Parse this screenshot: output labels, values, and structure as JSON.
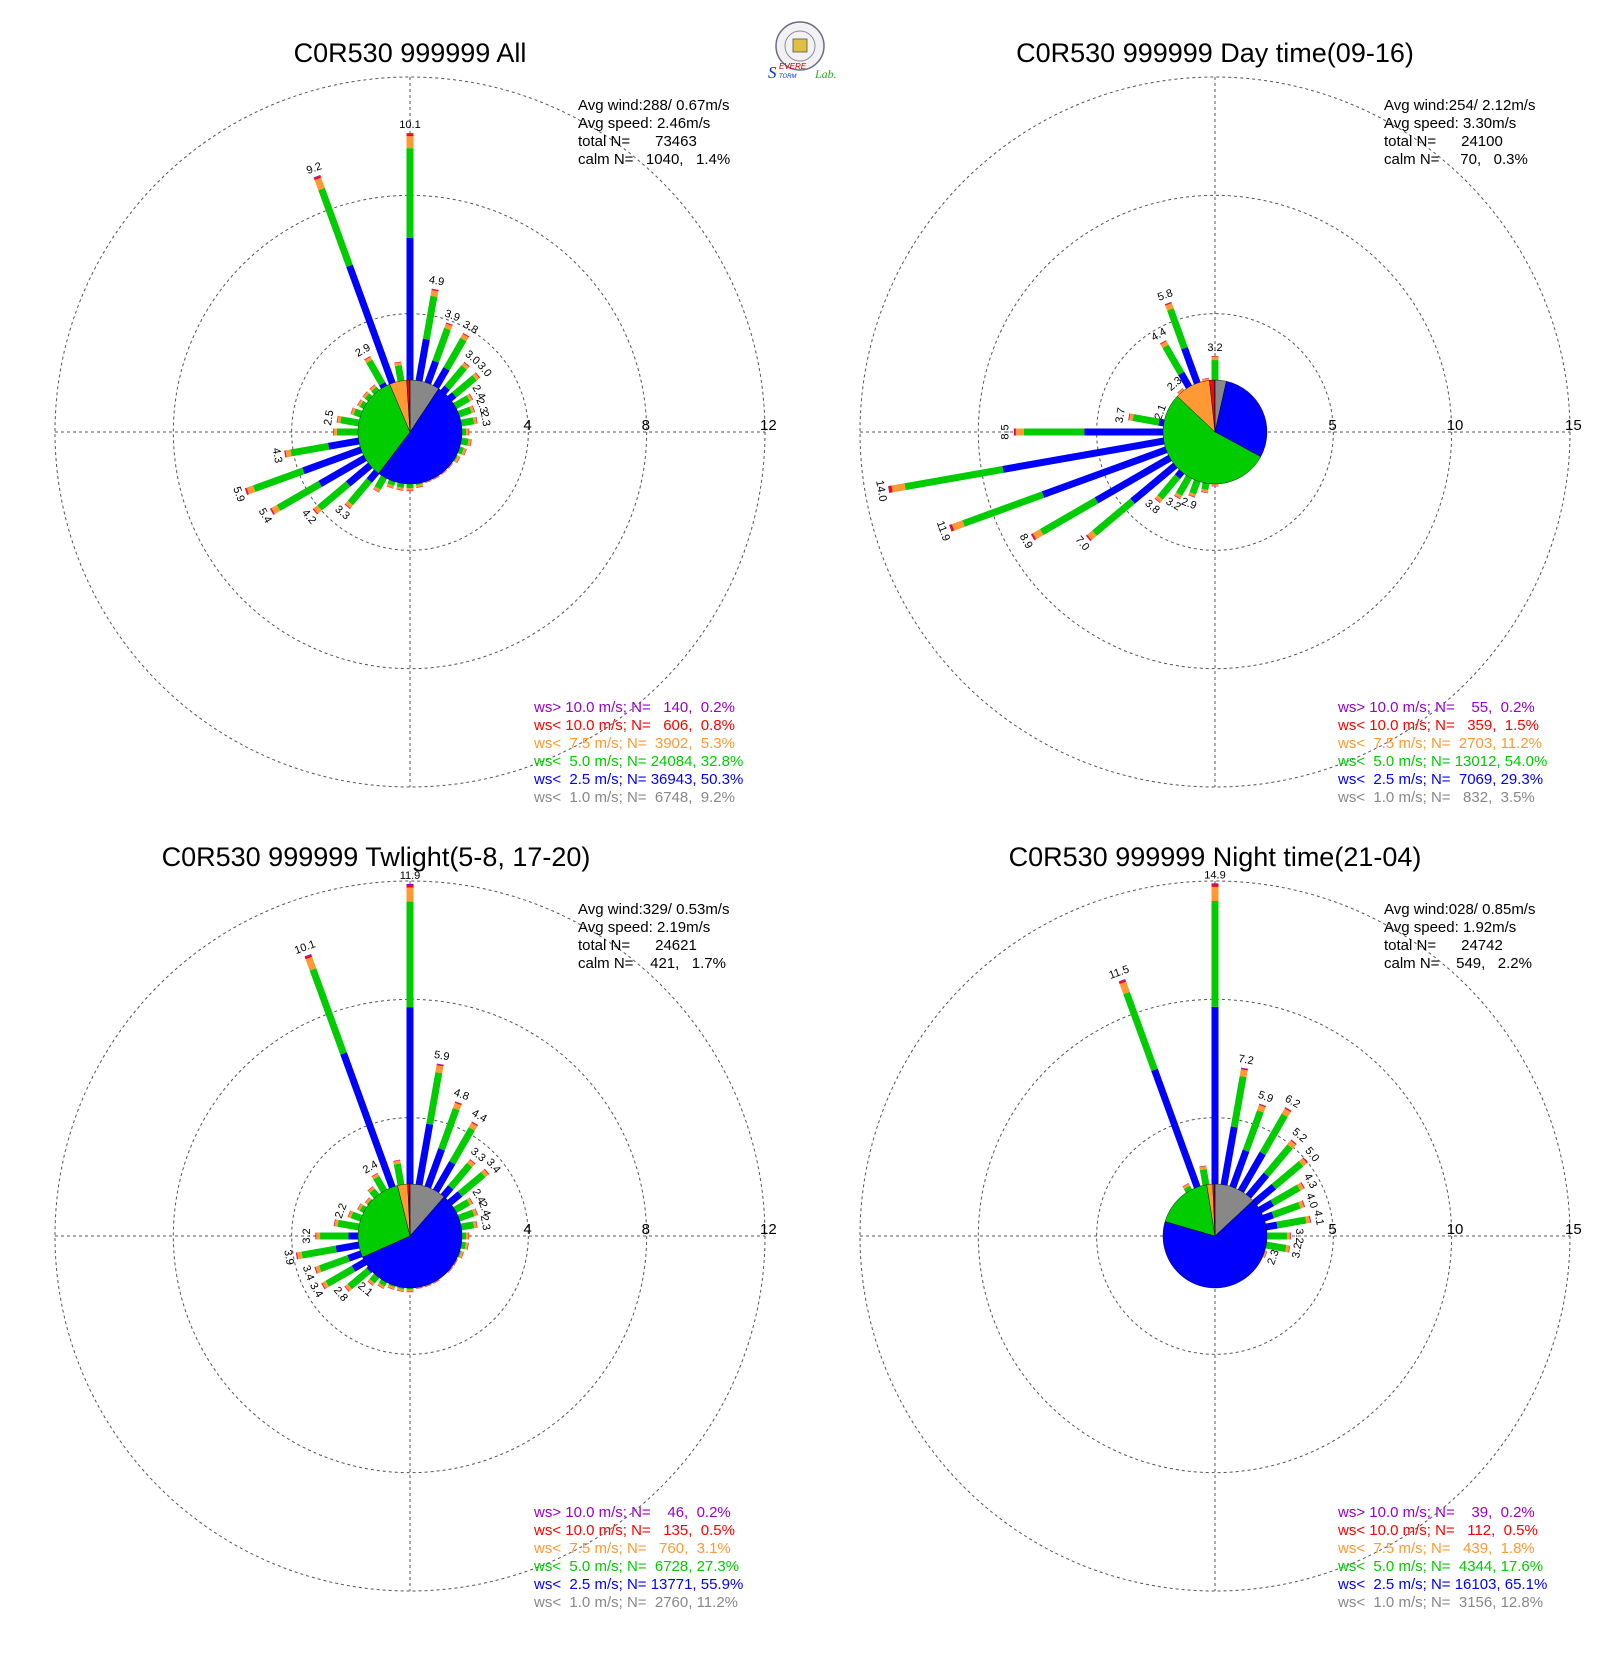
{
  "logo": {
    "text_s": "S",
    "text_evere": "EVERE",
    "text_torm": "TORM",
    "text_lab": "Lab."
  },
  "colors": {
    "gt10": "#9900cc",
    "lt10": "#ff0000",
    "lt75": "#ff9933",
    "lt5": "#00cc00",
    "lt25": "#0000ff",
    "lt1": "#888888"
  },
  "chart_data": [
    {
      "type": "windrose",
      "title": "C0R530 999999 All",
      "info": [
        "Avg wind:288/ 0.67m/s",
        "Avg speed: 2.46m/s",
        "total N=      73463",
        "calm N=   1040,   1.4%"
      ],
      "ring_labels": [
        "4",
        "8",
        "12"
      ],
      "max_ring": 12,
      "calm_pie": [
        9.2,
        50.3,
        32.8,
        5.3,
        0.8,
        0.2
      ],
      "bars": [
        {
          "dir": 0,
          "value": 10.1,
          "label": "10.1"
        },
        {
          "dir": 10,
          "value": 4.9,
          "label": "4.9"
        },
        {
          "dir": 20,
          "value": 3.9,
          "label": "3.9"
        },
        {
          "dir": 30,
          "value": 3.8,
          "label": "3.8"
        },
        {
          "dir": 40,
          "value": 3.0,
          "label": "3.0"
        },
        {
          "dir": 50,
          "value": 3.0,
          "label": "3.0"
        },
        {
          "dir": 60,
          "value": 2.4,
          "label": "2.4"
        },
        {
          "dir": 70,
          "value": 2.3,
          "label": "2.3"
        },
        {
          "dir": 80,
          "value": 2.3,
          "label": "2.3"
        },
        {
          "dir": 90,
          "value": 2.0
        },
        {
          "dir": 100,
          "value": 2.1
        },
        {
          "dir": 110,
          "value": 2.0
        },
        {
          "dir": 120,
          "value": 1.9
        },
        {
          "dir": 130,
          "value": 1.8
        },
        {
          "dir": 140,
          "value": 1.8
        },
        {
          "dir": 150,
          "value": 1.8
        },
        {
          "dir": 160,
          "value": 1.8
        },
        {
          "dir": 170,
          "value": 1.9
        },
        {
          "dir": 180,
          "value": 2.0
        },
        {
          "dir": 190,
          "value": 2.0
        },
        {
          "dir": 200,
          "value": 2.0
        },
        {
          "dir": 210,
          "value": 2.3
        },
        {
          "dir": 220,
          "value": 3.3,
          "label": "3.3"
        },
        {
          "dir": 230,
          "value": 4.2,
          "label": "4.2"
        },
        {
          "dir": 240,
          "value": 5.4,
          "label": "5.4"
        },
        {
          "dir": 250,
          "value": 5.9,
          "label": "5.9"
        },
        {
          "dir": 260,
          "value": 4.3,
          "label": "4.3"
        },
        {
          "dir": 270,
          "value": 2.6
        },
        {
          "dir": 280,
          "value": 2.5,
          "label": "2.5"
        },
        {
          "dir": 290,
          "value": 2.1
        },
        {
          "dir": 300,
          "value": 2.0
        },
        {
          "dir": 310,
          "value": 2.0
        },
        {
          "dir": 320,
          "value": 2.0
        },
        {
          "dir": 330,
          "value": 2.9,
          "label": "2.9"
        },
        {
          "dir": 340,
          "value": 9.2,
          "label": "9.2"
        },
        {
          "dir": 350,
          "value": 2.4
        }
      ],
      "legend": [
        {
          "text": "ws> 10.0 m/s; N=   140,  0.2%",
          "color": "gt10"
        },
        {
          "text": "ws< 10.0 m/s; N=   606,  0.8%",
          "color": "lt10"
        },
        {
          "text": "ws<  7.5 m/s; N=  3902,  5.3%",
          "color": "lt75"
        },
        {
          "text": "ws<  5.0 m/s; N= 24084, 32.8%",
          "color": "lt5"
        },
        {
          "text": "ws<  2.5 m/s; N= 36943, 50.3%",
          "color": "lt25"
        },
        {
          "text": "ws<  1.0 m/s; N=  6748,  9.2%",
          "color": "lt1"
        }
      ]
    },
    {
      "type": "windrose",
      "title": "C0R530 999999 Day time(09-16)",
      "info": [
        "Avg wind:254/ 2.12m/s",
        "Avg speed: 3.30m/s",
        "total N=      24100",
        "calm N=     70,   0.3%"
      ],
      "ring_labels": [
        "5",
        "10",
        "15"
      ],
      "max_ring": 15,
      "calm_pie": [
        3.5,
        29.3,
        54.0,
        11.2,
        1.5,
        0.2
      ],
      "bars": [
        {
          "dir": 0,
          "value": 3.2,
          "label": "3.2"
        },
        {
          "dir": 10,
          "value": 1.8
        },
        {
          "dir": 20,
          "value": 1.7
        },
        {
          "dir": 30,
          "value": 1.6
        },
        {
          "dir": 40,
          "value": 1.5
        },
        {
          "dir": 50,
          "value": 1.4
        },
        {
          "dir": 60,
          "value": 1.4
        },
        {
          "dir": 70,
          "value": 1.3
        },
        {
          "dir": 80,
          "value": 1.3
        },
        {
          "dir": 90,
          "value": 1.4
        },
        {
          "dir": 100,
          "value": 1.6
        },
        {
          "dir": 110,
          "value": 1.7
        },
        {
          "dir": 120,
          "value": 1.8
        },
        {
          "dir": 130,
          "value": 1.9
        },
        {
          "dir": 140,
          "value": 1.9
        },
        {
          "dir": 150,
          "value": 2.0
        },
        {
          "dir": 160,
          "value": 2.0
        },
        {
          "dir": 170,
          "value": 2.2
        },
        {
          "dir": 180,
          "value": 2.3
        },
        {
          "dir": 190,
          "value": 2.6
        },
        {
          "dir": 200,
          "value": 2.9,
          "label": "2.9"
        },
        {
          "dir": 210,
          "value": 3.2,
          "label": "3.2"
        },
        {
          "dir": 220,
          "value": 3.8,
          "label": "3.8"
        },
        {
          "dir": 230,
          "value": 7.0,
          "label": "7.0"
        },
        {
          "dir": 240,
          "value": 8.9,
          "label": "8.9"
        },
        {
          "dir": 250,
          "value": 11.9,
          "label": "11.9"
        },
        {
          "dir": 260,
          "value": 14.0,
          "label": "14.0"
        },
        {
          "dir": 270,
          "value": 8.5,
          "label": "8.5"
        },
        {
          "dir": 280,
          "value": 3.7,
          "label": "3.7"
        },
        {
          "dir": 290,
          "value": 2.1,
          "label": "2.1"
        },
        {
          "dir": 300,
          "value": 1.6
        },
        {
          "dir": 310,
          "value": 1.6
        },
        {
          "dir": 320,
          "value": 2.3,
          "label": "2.3"
        },
        {
          "dir": 330,
          "value": 4.4,
          "label": "4.4"
        },
        {
          "dir": 340,
          "value": 5.8,
          "label": "5.8"
        },
        {
          "dir": 350,
          "value": 2.3
        }
      ],
      "legend": [
        {
          "text": "ws> 10.0 m/s; N=    55,  0.2%",
          "color": "gt10"
        },
        {
          "text": "ws< 10.0 m/s; N=   359,  1.5%",
          "color": "lt10"
        },
        {
          "text": "ws<  7.5 m/s; N=  2703, 11.2%",
          "color": "lt75"
        },
        {
          "text": "ws<  5.0 m/s; N= 13012, 54.0%",
          "color": "lt5"
        },
        {
          "text": "ws<  2.5 m/s; N=  7069, 29.3%",
          "color": "lt25"
        },
        {
          "text": "ws<  1.0 m/s; N=   832,  3.5%",
          "color": "lt1"
        }
      ]
    },
    {
      "type": "windrose",
      "title": "C0R530 999999 Twlight(5-8, 17-20)",
      "info": [
        "Avg wind:329/ 0.53m/s",
        "Avg speed: 2.19m/s",
        "total N=      24621",
        "calm N=    421,   1.7%"
      ],
      "ring_labels": [
        "4",
        "8",
        "12"
      ],
      "max_ring": 12,
      "calm_pie": [
        11.2,
        55.9,
        27.3,
        3.1,
        0.5,
        0.2
      ],
      "bars": [
        {
          "dir": 0,
          "value": 11.9,
          "label": "11.9"
        },
        {
          "dir": 10,
          "value": 5.9,
          "label": "5.9"
        },
        {
          "dir": 20,
          "value": 4.8,
          "label": "4.8"
        },
        {
          "dir": 30,
          "value": 4.4,
          "label": "4.4"
        },
        {
          "dir": 40,
          "value": 3.3,
          "label": "3.3"
        },
        {
          "dir": 50,
          "value": 3.4,
          "label": "3.4"
        },
        {
          "dir": 60,
          "value": 2.4,
          "label": "2.4"
        },
        {
          "dir": 70,
          "value": 2.4,
          "label": "2.4"
        },
        {
          "dir": 80,
          "value": 2.3,
          "label": "2.3"
        },
        {
          "dir": 90,
          "value": 2.0
        },
        {
          "dir": 100,
          "value": 2.0
        },
        {
          "dir": 110,
          "value": 1.9
        },
        {
          "dir": 120,
          "value": 1.8
        },
        {
          "dir": 130,
          "value": 1.8
        },
        {
          "dir": 140,
          "value": 1.7
        },
        {
          "dir": 150,
          "value": 1.8
        },
        {
          "dir": 160,
          "value": 1.8
        },
        {
          "dir": 170,
          "value": 1.8
        },
        {
          "dir": 180,
          "value": 1.9
        },
        {
          "dir": 190,
          "value": 1.9
        },
        {
          "dir": 200,
          "value": 1.9
        },
        {
          "dir": 210,
          "value": 2.0
        },
        {
          "dir": 220,
          "value": 2.1,
          "label": "2.1"
        },
        {
          "dir": 230,
          "value": 2.8,
          "label": "2.8"
        },
        {
          "dir": 240,
          "value": 3.4,
          "label": "3.4"
        },
        {
          "dir": 250,
          "value": 3.4,
          "label": "3.4"
        },
        {
          "dir": 260,
          "value": 3.9,
          "label": "3.9"
        },
        {
          "dir": 270,
          "value": 3.2,
          "label": "3.2"
        },
        {
          "dir": 280,
          "value": 2.6
        },
        {
          "dir": 290,
          "value": 2.2,
          "label": "2.2"
        },
        {
          "dir": 300,
          "value": 2.0
        },
        {
          "dir": 310,
          "value": 1.9
        },
        {
          "dir": 320,
          "value": 2.1
        },
        {
          "dir": 330,
          "value": 2.4,
          "label": "2.4"
        },
        {
          "dir": 340,
          "value": 10.1,
          "label": "10.1"
        },
        {
          "dir": 350,
          "value": 2.6
        }
      ],
      "legend": [
        {
          "text": "ws> 10.0 m/s; N=    46,  0.2%",
          "color": "gt10"
        },
        {
          "text": "ws< 10.0 m/s; N=   135,  0.5%",
          "color": "lt10"
        },
        {
          "text": "ws<  7.5 m/s; N=   760,  3.1%",
          "color": "lt75"
        },
        {
          "text": "ws<  5.0 m/s; N=  6728, 27.3%",
          "color": "lt5"
        },
        {
          "text": "ws<  2.5 m/s; N= 13771, 55.9%",
          "color": "lt25"
        },
        {
          "text": "ws<  1.0 m/s; N=  2760, 11.2%",
          "color": "lt1"
        }
      ]
    },
    {
      "type": "windrose",
      "title": "C0R530 999999 Night time(21-04)",
      "info": [
        "Avg wind:028/ 0.85m/s",
        "Avg speed: 1.92m/s",
        "total N=      24742",
        "calm N=    549,   2.2%"
      ],
      "ring_labels": [
        "5",
        "10",
        "15"
      ],
      "max_ring": 15,
      "calm_pie": [
        12.8,
        65.1,
        17.6,
        1.8,
        0.5,
        0.2
      ],
      "bars": [
        {
          "dir": 0,
          "value": 14.9,
          "label": "14.9"
        },
        {
          "dir": 10,
          "value": 7.2,
          "label": "7.2"
        },
        {
          "dir": 20,
          "value": 5.9,
          "label": "5.9"
        },
        {
          "dir": 30,
          "value": 6.2,
          "label": "6.2"
        },
        {
          "dir": 40,
          "value": 5.2,
          "label": "5.2"
        },
        {
          "dir": 50,
          "value": 5.0,
          "label": "5.0"
        },
        {
          "dir": 60,
          "value": 4.3,
          "label": "4.3"
        },
        {
          "dir": 70,
          "value": 4.0,
          "label": "4.0"
        },
        {
          "dir": 80,
          "value": 4.1,
          "label": "4.1"
        },
        {
          "dir": 90,
          "value": 3.2,
          "label": "3.2"
        },
        {
          "dir": 100,
          "value": 3.2,
          "label": "3.2"
        },
        {
          "dir": 110,
          "value": 2.3,
          "label": "2.3"
        },
        {
          "dir": 120,
          "value": 2.0
        },
        {
          "dir": 130,
          "value": 1.8
        },
        {
          "dir": 140,
          "value": 1.6
        },
        {
          "dir": 150,
          "value": 1.5
        },
        {
          "dir": 160,
          "value": 1.4
        },
        {
          "dir": 170,
          "value": 1.4
        },
        {
          "dir": 180,
          "value": 1.4
        },
        {
          "dir": 190,
          "value": 1.4
        },
        {
          "dir": 200,
          "value": 1.4
        },
        {
          "dir": 210,
          "value": 1.5
        },
        {
          "dir": 220,
          "value": 1.5
        },
        {
          "dir": 230,
          "value": 1.6
        },
        {
          "dir": 240,
          "value": 1.5
        },
        {
          "dir": 250,
          "value": 1.5
        },
        {
          "dir": 260,
          "value": 1.5
        },
        {
          "dir": 270,
          "value": 1.5
        },
        {
          "dir": 280,
          "value": 1.6
        },
        {
          "dir": 290,
          "value": 1.6
        },
        {
          "dir": 300,
          "value": 1.7
        },
        {
          "dir": 310,
          "value": 1.9
        },
        {
          "dir": 320,
          "value": 2.2
        },
        {
          "dir": 330,
          "value": 2.5
        },
        {
          "dir": 340,
          "value": 11.5,
          "label": "11.5"
        },
        {
          "dir": 350,
          "value": 3.0
        }
      ],
      "legend": [
        {
          "text": "ws> 10.0 m/s; N=    39,  0.2%",
          "color": "gt10"
        },
        {
          "text": "ws< 10.0 m/s; N=   112,  0.5%",
          "color": "lt10"
        },
        {
          "text": "ws<  7.5 m/s; N=   439,  1.8%",
          "color": "lt75"
        },
        {
          "text": "ws<  5.0 m/s; N=  4344, 17.6%",
          "color": "lt5"
        },
        {
          "text": "ws<  2.5 m/s; N= 16103, 65.1%",
          "color": "lt25"
        },
        {
          "text": "ws<  1.0 m/s; N=  3156, 12.8%",
          "color": "lt1"
        }
      ]
    }
  ]
}
